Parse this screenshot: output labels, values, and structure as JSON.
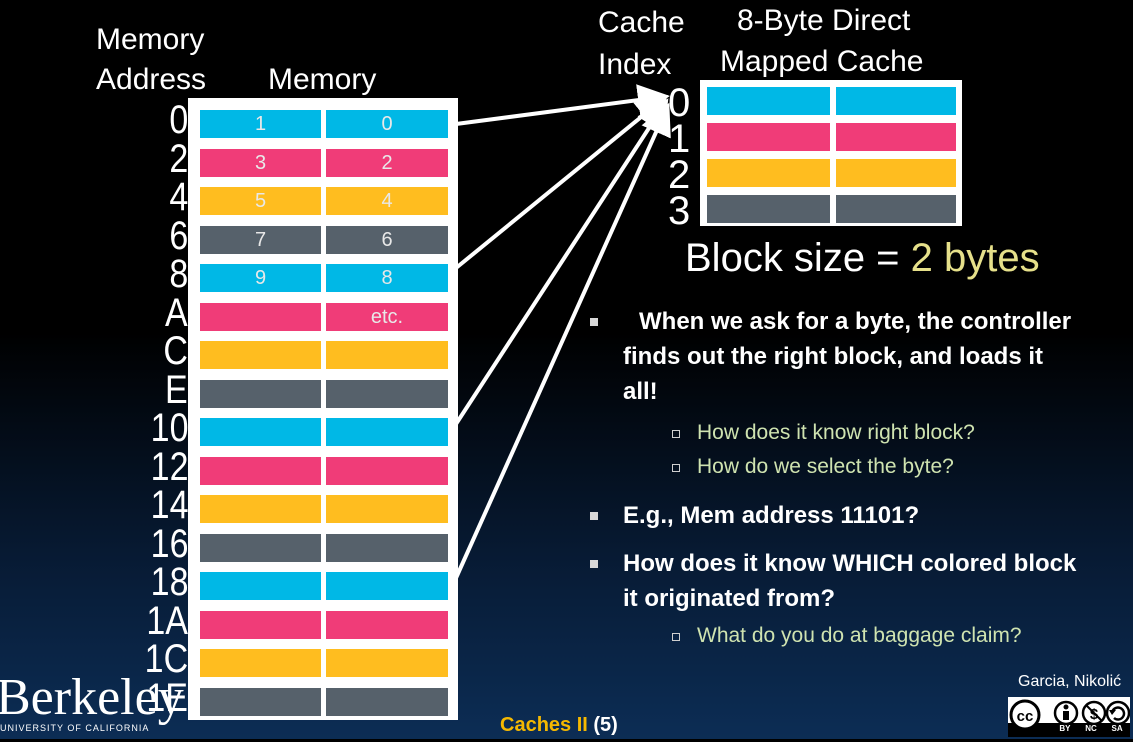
{
  "headers": {
    "memory_address": [
      "Memory",
      "Address"
    ],
    "memory": "Memory",
    "cache_index": [
      "Cache",
      "Index"
    ],
    "cache_title": [
      "8-Byte Direct",
      "Mapped Cache"
    ]
  },
  "colors": {
    "cyan": "#00b8e6",
    "pink": "#f03c78",
    "yellow": "#ffbd1f",
    "gray": "#56616b"
  },
  "memory_rows": [
    {
      "address": "0",
      "color": "cyan",
      "left": "1",
      "right": "0"
    },
    {
      "address": "2",
      "color": "pink",
      "left": "3",
      "right": "2"
    },
    {
      "address": "4",
      "color": "yellow",
      "left": "5",
      "right": "4"
    },
    {
      "address": "6",
      "color": "gray",
      "left": "7",
      "right": "6"
    },
    {
      "address": "8",
      "color": "cyan",
      "left": "9",
      "right": "8"
    },
    {
      "address": "A",
      "color": "pink",
      "left": "",
      "right": "etc."
    },
    {
      "address": "C",
      "color": "yellow",
      "left": "",
      "right": ""
    },
    {
      "address": "E",
      "color": "gray",
      "left": "",
      "right": ""
    },
    {
      "address": "10",
      "color": "cyan",
      "left": "",
      "right": ""
    },
    {
      "address": "12",
      "color": "pink",
      "left": "",
      "right": ""
    },
    {
      "address": "14",
      "color": "yellow",
      "left": "",
      "right": ""
    },
    {
      "address": "16",
      "color": "gray",
      "left": "",
      "right": ""
    },
    {
      "address": "18",
      "color": "cyan",
      "left": "",
      "right": ""
    },
    {
      "address": "1A",
      "color": "pink",
      "left": "",
      "right": ""
    },
    {
      "address": "1C",
      "color": "yellow",
      "left": "",
      "right": ""
    },
    {
      "address": "1E",
      "color": "gray",
      "left": "",
      "right": ""
    }
  ],
  "cache_rows": [
    {
      "index": "0",
      "color": "cyan"
    },
    {
      "index": "1",
      "color": "pink"
    },
    {
      "index": "2",
      "color": "yellow"
    },
    {
      "index": "3",
      "color": "gray"
    }
  ],
  "block_size": {
    "label": "Block size = ",
    "value": "2 bytes"
  },
  "bullets": [
    {
      "level": 1,
      "text": "When we ask for a byte, the controller finds out the right block, and loads it all!"
    },
    {
      "level": 2,
      "text": "How does it know right block?"
    },
    {
      "level": 2,
      "text": "How do we select the byte?"
    },
    {
      "level": 1,
      "text": "E.g., Mem address 11101?"
    },
    {
      "level": 1,
      "text": "How does it know WHICH colored block it originated from?"
    },
    {
      "level": 2,
      "text": "What do you do at baggage claim?"
    }
  ],
  "footer": {
    "logo": "Berkeley",
    "logo_sub": "UNIVERSITY OF CALIFORNIA",
    "title": "Caches II",
    "slide_number": "(5)",
    "author": "Garcia, Nikolić",
    "license": [
      "BY",
      "NC",
      "SA"
    ]
  }
}
